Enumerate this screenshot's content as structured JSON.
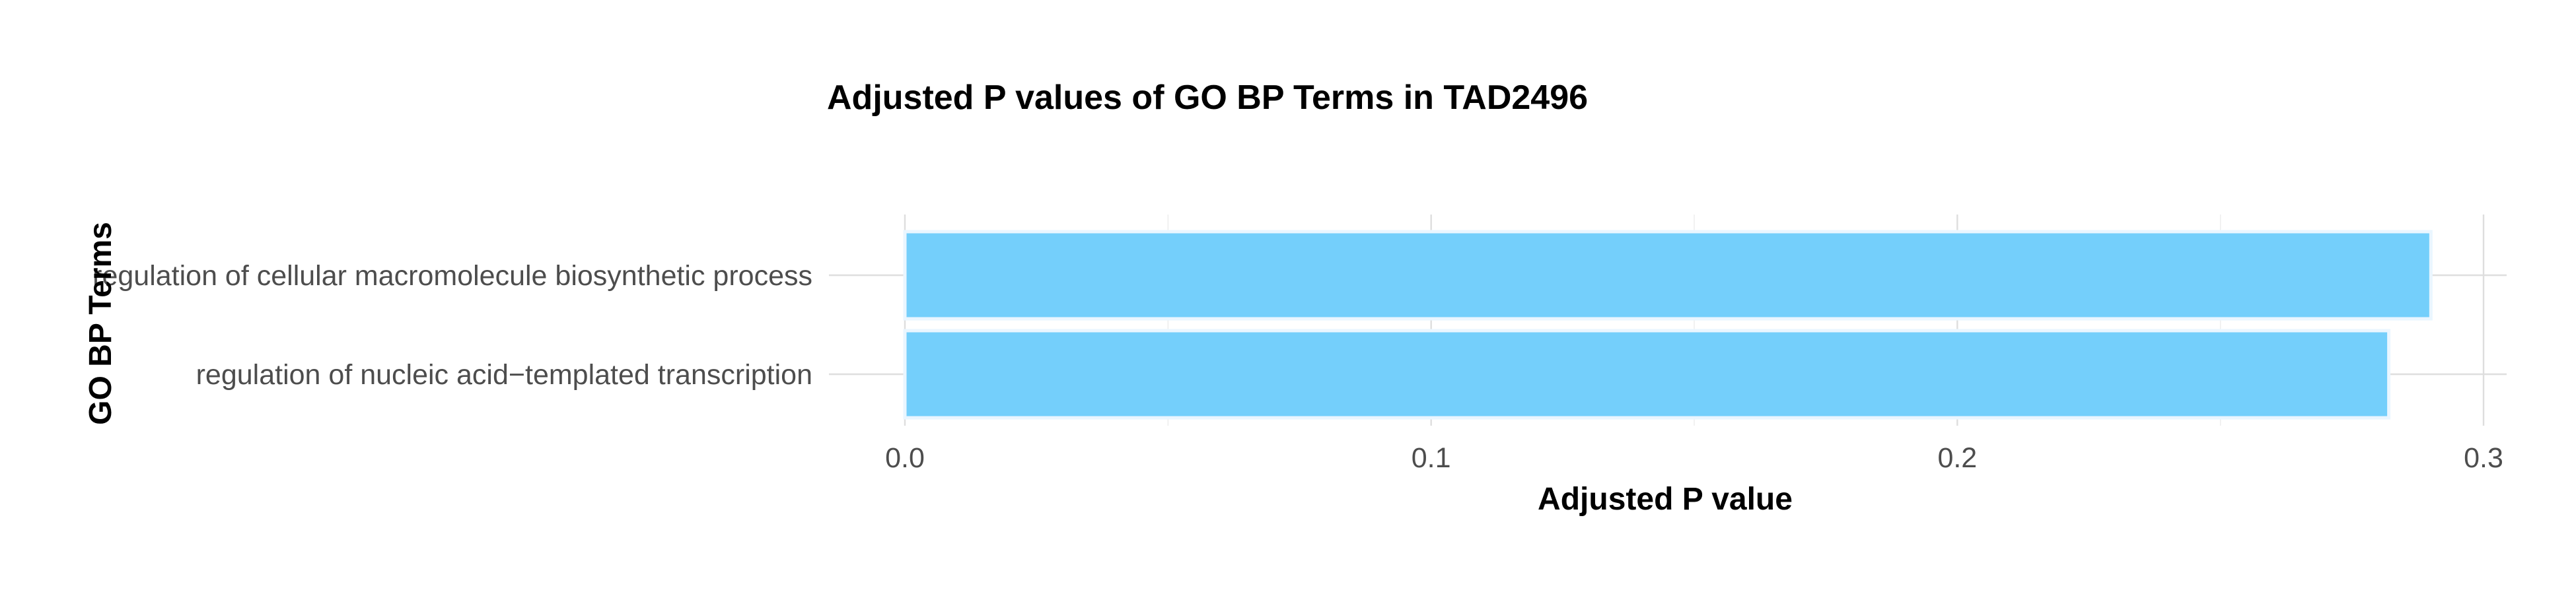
{
  "chart_data": {
    "type": "bar",
    "orientation": "horizontal",
    "title": "Adjusted P values of GO BP Terms in TAD2496",
    "xlabel": "Adjusted P value",
    "ylabel": "GO BP Terms",
    "categories": [
      "regulation of cellular macromolecule biosynthetic process",
      "regulation of nucleic acid−templated transcription"
    ],
    "values": [
      0.29,
      0.282
    ],
    "xlim": [
      0,
      0.3
    ],
    "x_ticks": [
      "0.0",
      "0.1",
      "0.2",
      "0.3"
    ],
    "x_tick_values": [
      0,
      0.1,
      0.2,
      0.3
    ],
    "bar_color": "#74CFFB",
    "grid": true,
    "legend": "none"
  }
}
